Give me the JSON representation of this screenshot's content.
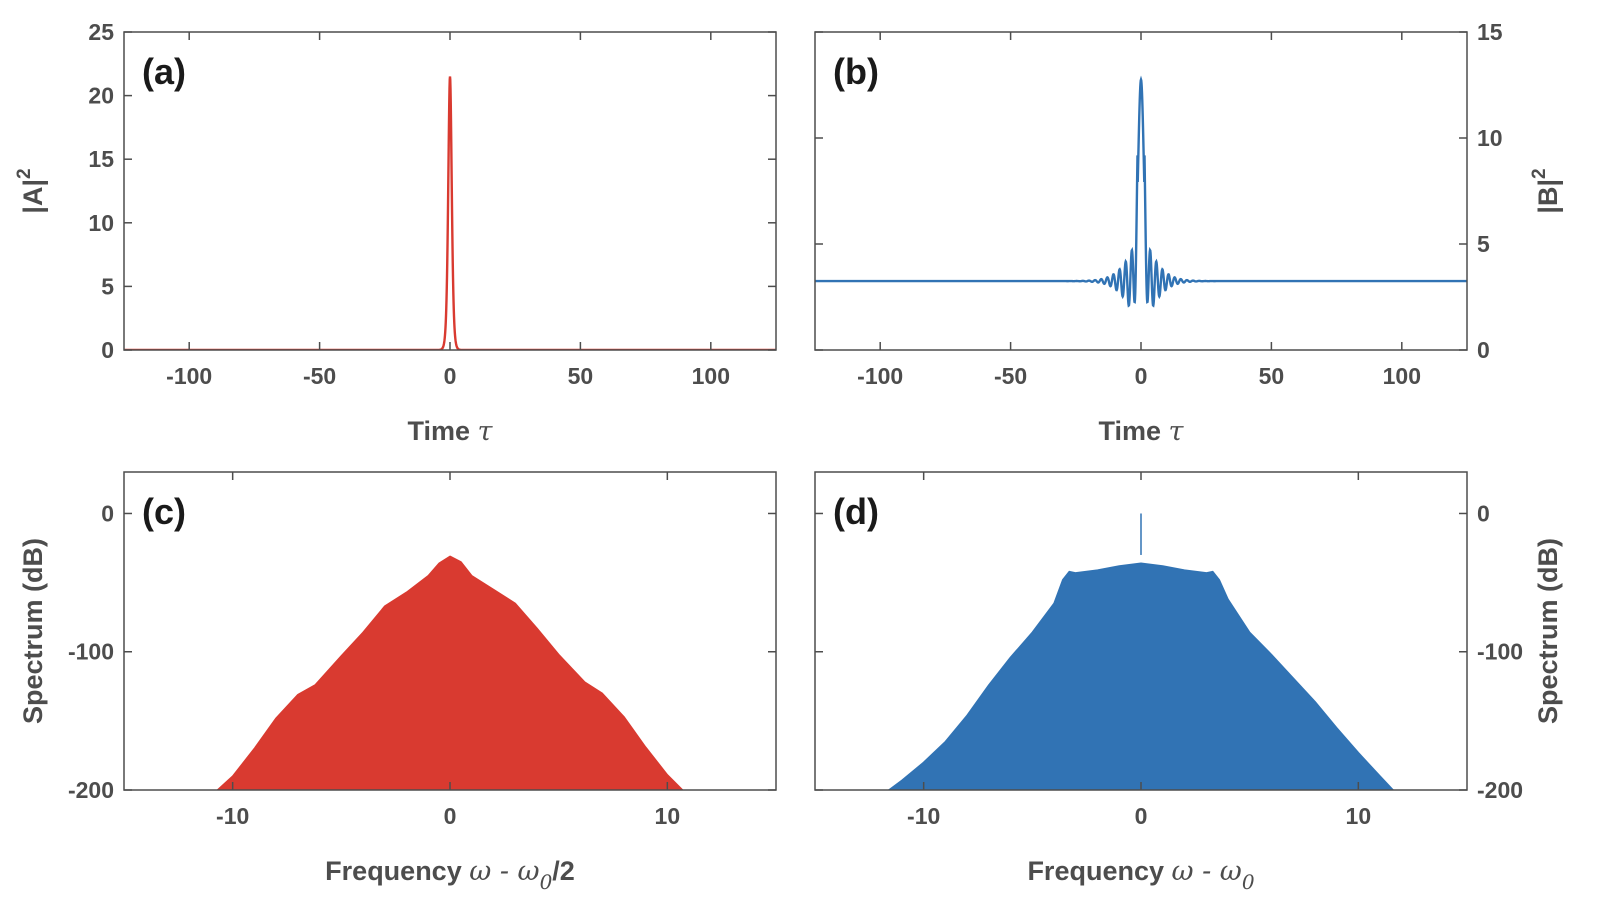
{
  "colors": {
    "red": "#d93a30",
    "blue": "#3173b4",
    "axis": "#4d4d4d",
    "label": "#1a1a1a"
  },
  "chart_data": [
    {
      "id": "a",
      "type": "line",
      "panel_label": "(a)",
      "xlabel": "Time",
      "xlabel_symbol": "τ",
      "ylabel": "|A|",
      "ylabel_sup": "2",
      "xlim": [
        -125,
        125
      ],
      "ylim": [
        0,
        25
      ],
      "xticks": [
        -100,
        -50,
        0,
        50,
        100
      ],
      "xtick_labels": [
        "-100",
        "-50",
        "0",
        "50",
        "100"
      ],
      "yticks": [
        0,
        5,
        10,
        15,
        20,
        25
      ],
      "ytick_labels": [
        "0",
        "5",
        "10",
        "15",
        "20",
        "25"
      ],
      "y_axis_side": "left",
      "series": [
        {
          "color": "#d93a30",
          "shape": "sech2",
          "baseline": 0,
          "peak": 21.5,
          "center": 0,
          "width": 0.9
        }
      ]
    },
    {
      "id": "b",
      "type": "line",
      "panel_label": "(b)",
      "xlabel": "Time",
      "xlabel_symbol": "τ",
      "ylabel": "|B|",
      "ylabel_sup": "2",
      "xlim": [
        -125,
        125
      ],
      "ylim": [
        0,
        15
      ],
      "xticks": [
        -100,
        -50,
        0,
        50,
        100
      ],
      "xtick_labels": [
        "-100",
        "-50",
        "0",
        "50",
        "100"
      ],
      "yticks": [
        0,
        5,
        10,
        15
      ],
      "ytick_labels": [
        "0",
        "5",
        "10",
        "15"
      ],
      "y_axis_side": "right",
      "series": [
        {
          "color": "#3173b4",
          "shape": "oscillating-peak",
          "baseline": 3.25,
          "peak": 12.75,
          "center": 0,
          "min": 1.3,
          "oscillation_halfwidth": 15
        }
      ]
    },
    {
      "id": "c",
      "type": "area",
      "panel_label": "(c)",
      "xlabel": "Frequency",
      "xlabel_symbol": "ω - ω",
      "xlabel_sub": "0",
      "xlabel_suffix": "/2",
      "ylabel": "Spectrum (dB)",
      "xlim": [
        -15,
        15
      ],
      "ylim": [
        -200,
        30
      ],
      "xticks": [
        -10,
        0,
        10
      ],
      "xtick_labels": [
        "-10",
        "0",
        "10"
      ],
      "yticks": [
        -200,
        -100,
        0
      ],
      "ytick_labels": [
        "-200",
        "-100",
        "0"
      ],
      "y_axis_side": "left",
      "series": [
        {
          "color": "#d93a30",
          "x": [
            -10.7,
            -10,
            -9,
            -8,
            -7,
            -6.2,
            -5,
            -4,
            -3,
            -2,
            -1,
            -0.5,
            0,
            0.5,
            1,
            2,
            3,
            4,
            5,
            6.2,
            7,
            8,
            9,
            10,
            10.7
          ],
          "y": [
            -200,
            -190,
            -170,
            -148,
            -131,
            -124,
            -103,
            -86,
            -67,
            -57,
            -45,
            -36,
            -31,
            -35,
            -45,
            -55,
            -65,
            -83,
            -102,
            -122,
            -130,
            -147,
            -169,
            -189,
            -200
          ]
        }
      ]
    },
    {
      "id": "d",
      "type": "area",
      "panel_label": "(d)",
      "xlabel": "Frequency",
      "xlabel_symbol": "ω - ω",
      "xlabel_sub": "0",
      "xlabel_suffix": "",
      "ylabel": "Spectrum (dB)",
      "xlim": [
        -15,
        15
      ],
      "ylim": [
        -200,
        30
      ],
      "xticks": [
        -10,
        0,
        10
      ],
      "xtick_labels": [
        "-10",
        "0",
        "10"
      ],
      "yticks": [
        -200,
        -100,
        0
      ],
      "ytick_labels": [
        "-200",
        "-100",
        "0"
      ],
      "y_axis_side": "right",
      "series": [
        {
          "color": "#3173b4",
          "x": [
            -11.6,
            -11,
            -10,
            -9,
            -8,
            -7,
            -6,
            -5,
            -4,
            -3.6,
            -3.3,
            -3,
            -2,
            -1,
            0,
            1,
            2,
            3,
            3.3,
            3.6,
            4,
            5,
            6,
            7,
            8,
            9,
            10,
            11,
            11.6
          ],
          "y": [
            -200,
            -193,
            -180,
            -165,
            -146,
            -124,
            -104,
            -86,
            -65,
            -48,
            -42,
            -43,
            -41,
            -38,
            -36,
            -38,
            -41,
            -43,
            -42,
            -48,
            -62,
            -86,
            -102,
            -119,
            -136,
            -155,
            -173,
            -190,
            -200
          ],
          "spike": {
            "x": 0,
            "y": 0
          }
        }
      ]
    }
  ]
}
